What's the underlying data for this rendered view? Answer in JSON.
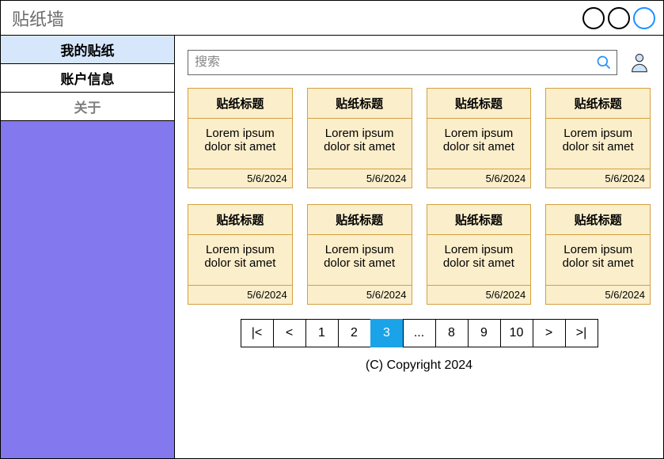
{
  "window": {
    "title": "贴纸墙"
  },
  "sidebar": {
    "items": [
      {
        "label": "我的贴纸",
        "active": true
      },
      {
        "label": "账户信息",
        "active": false
      },
      {
        "label": "关于",
        "active": false,
        "muted": true
      }
    ]
  },
  "search": {
    "placeholder": "搜索"
  },
  "cards": [
    {
      "title": "贴纸标题",
      "body": "Lorem ipsum dolor sit amet",
      "date": "5/6/2024"
    },
    {
      "title": "贴纸标题",
      "body": "Lorem ipsum dolor sit amet",
      "date": "5/6/2024"
    },
    {
      "title": "贴纸标题",
      "body": "Lorem ipsum dolor sit amet",
      "date": "5/6/2024"
    },
    {
      "title": "贴纸标题",
      "body": "Lorem ipsum dolor sit amet",
      "date": "5/6/2024"
    },
    {
      "title": "贴纸标题",
      "body": "Lorem ipsum dolor sit amet",
      "date": "5/6/2024"
    },
    {
      "title": "贴纸标题",
      "body": "Lorem ipsum dolor sit amet",
      "date": "5/6/2024"
    },
    {
      "title": "贴纸标题",
      "body": "Lorem ipsum dolor sit amet",
      "date": "5/6/2024"
    },
    {
      "title": "贴纸标题",
      "body": "Lorem ipsum dolor sit amet",
      "date": "5/6/2024"
    }
  ],
  "pager": {
    "buttons": [
      {
        "label": "|<",
        "kind": "first"
      },
      {
        "label": "<",
        "kind": "prev"
      },
      {
        "label": "1",
        "kind": "page"
      },
      {
        "label": "2",
        "kind": "page"
      },
      {
        "label": "3",
        "kind": "page",
        "active": true
      },
      {
        "label": "...",
        "kind": "ellipsis"
      },
      {
        "label": "8",
        "kind": "page"
      },
      {
        "label": "9",
        "kind": "page"
      },
      {
        "label": "10",
        "kind": "page"
      },
      {
        "label": ">",
        "kind": "next"
      },
      {
        "label": ">|",
        "kind": "last"
      }
    ]
  },
  "footer": {
    "text": "(C) Copyright 2024"
  },
  "colors": {
    "sidebar_bg": "#8478ef",
    "sidebar_active_bg": "#d6e6fb",
    "card_bg": "#fbeecb",
    "card_border": "#d4a040",
    "pager_active_bg": "#1aa3e8",
    "accent_blue": "#1e90ff"
  }
}
